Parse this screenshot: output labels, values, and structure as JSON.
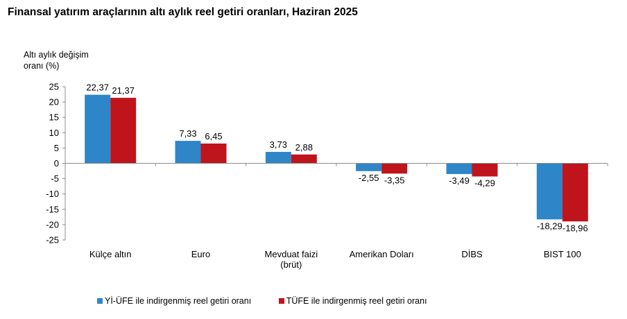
{
  "title": "Finansal yatırım araçlarının altı aylık reel getiri oranları, Haziran 2025",
  "colors": {
    "series1": "#2e86c8",
    "series2": "#c0141c",
    "axis": "#8c8c8c"
  },
  "chart_data": {
    "type": "bar",
    "title": "Finansal yatırım araçlarının altı aylık reel getiri oranları, Haziran 2025",
    "ylabel_lines": [
      "Altı aylık değişim",
      "oranı (%)"
    ],
    "xlabel": "",
    "ylim": [
      -25,
      25
    ],
    "yticks": [
      "25",
      "20",
      "15",
      "10",
      "5",
      "0",
      "-5",
      "-10",
      "-15",
      "-20",
      "-25"
    ],
    "ytick_values": [
      25,
      20,
      15,
      10,
      5,
      0,
      -5,
      -10,
      -15,
      -20,
      -25
    ],
    "categories": [
      [
        "Külçe altın"
      ],
      [
        "Euro"
      ],
      [
        "Mevduat faizi",
        "(brüt)"
      ],
      [
        "Amerikan Doları"
      ],
      [
        "DİBS"
      ],
      [
        "BIST 100"
      ]
    ],
    "series": [
      {
        "name": "Yİ-ÜFE ile indirgenmiş reel getiri oranı",
        "values": [
          22.37,
          7.33,
          3.73,
          -2.55,
          -3.49,
          -18.29
        ],
        "labels": [
          "22,37",
          "7,33",
          "3,73",
          "-2,55",
          "-3,49",
          "-18,29"
        ]
      },
      {
        "name": "TÜFE ile indirgenmiş reel getiri oranı",
        "values": [
          21.37,
          6.45,
          2.88,
          -3.35,
          -4.29,
          -18.96
        ],
        "labels": [
          "21,37",
          "6,45",
          "2,88",
          "-3,35",
          "-4,29",
          "-18,96"
        ]
      }
    ],
    "legend_position": "bottom",
    "grid": false
  }
}
